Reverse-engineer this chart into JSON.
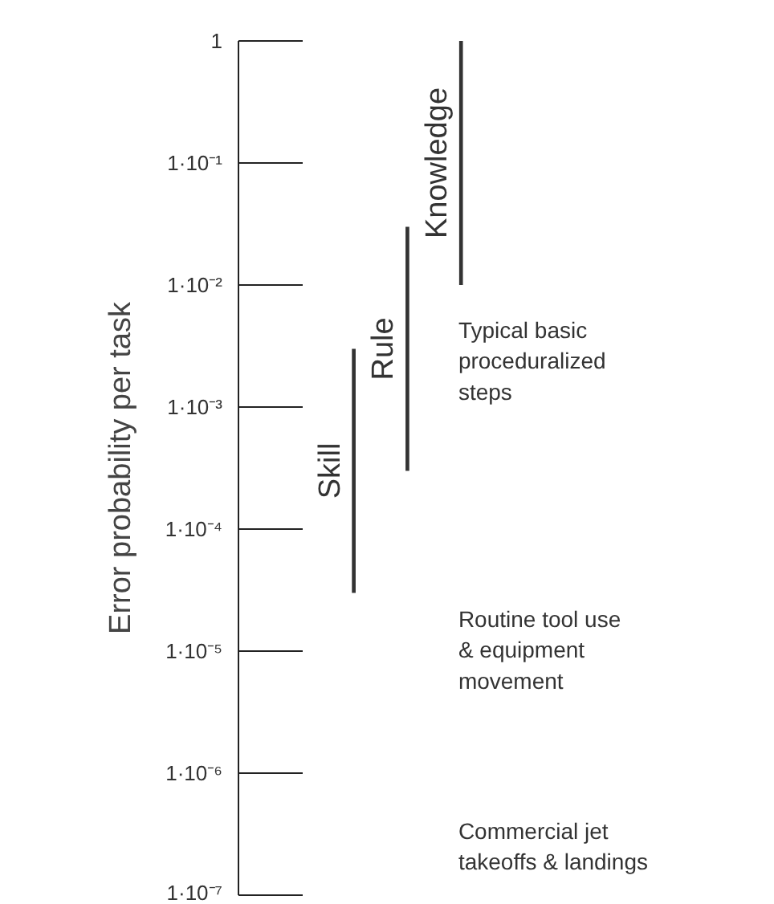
{
  "chart_data": {
    "type": "bar",
    "ylabel": "Error probability per task",
    "categories": [
      null,
      null,
      null
    ],
    "base": [
      3e-05,
      0.0003,
      0.01
    ],
    "values": [
      0.00297,
      0.0297,
      0.99
    ],
    "color": "#333333",
    "log": true,
    "ylim": [
      1e-07,
      1
    ],
    "yticks": [
      {
        "value": 1e-07,
        "label": "1·10⁻⁷"
      },
      {
        "value": 1e-06,
        "label": "1·10⁻⁶"
      },
      {
        "value": 1e-05,
        "label": "1·10⁻⁵"
      },
      {
        "value": 0.0001,
        "label": "1·10⁻⁴"
      },
      {
        "value": 0.001,
        "label": "1·10⁻³"
      },
      {
        "value": 0.01,
        "label": "1·10⁻²"
      },
      {
        "value": 0.1,
        "label": "1·10⁻¹"
      },
      {
        "value": 1,
        "label": "1"
      }
    ],
    "tick_labels": "y",
    "grid": false,
    "annotations": [
      "Skill",
      "Rule",
      "Knowledge",
      "Typical basic\nproceduralized\nsteps",
      "Routine tool use\n& equipment\n movement",
      "Commercial              jet\ntakeoffs & landings"
    ]
  }
}
